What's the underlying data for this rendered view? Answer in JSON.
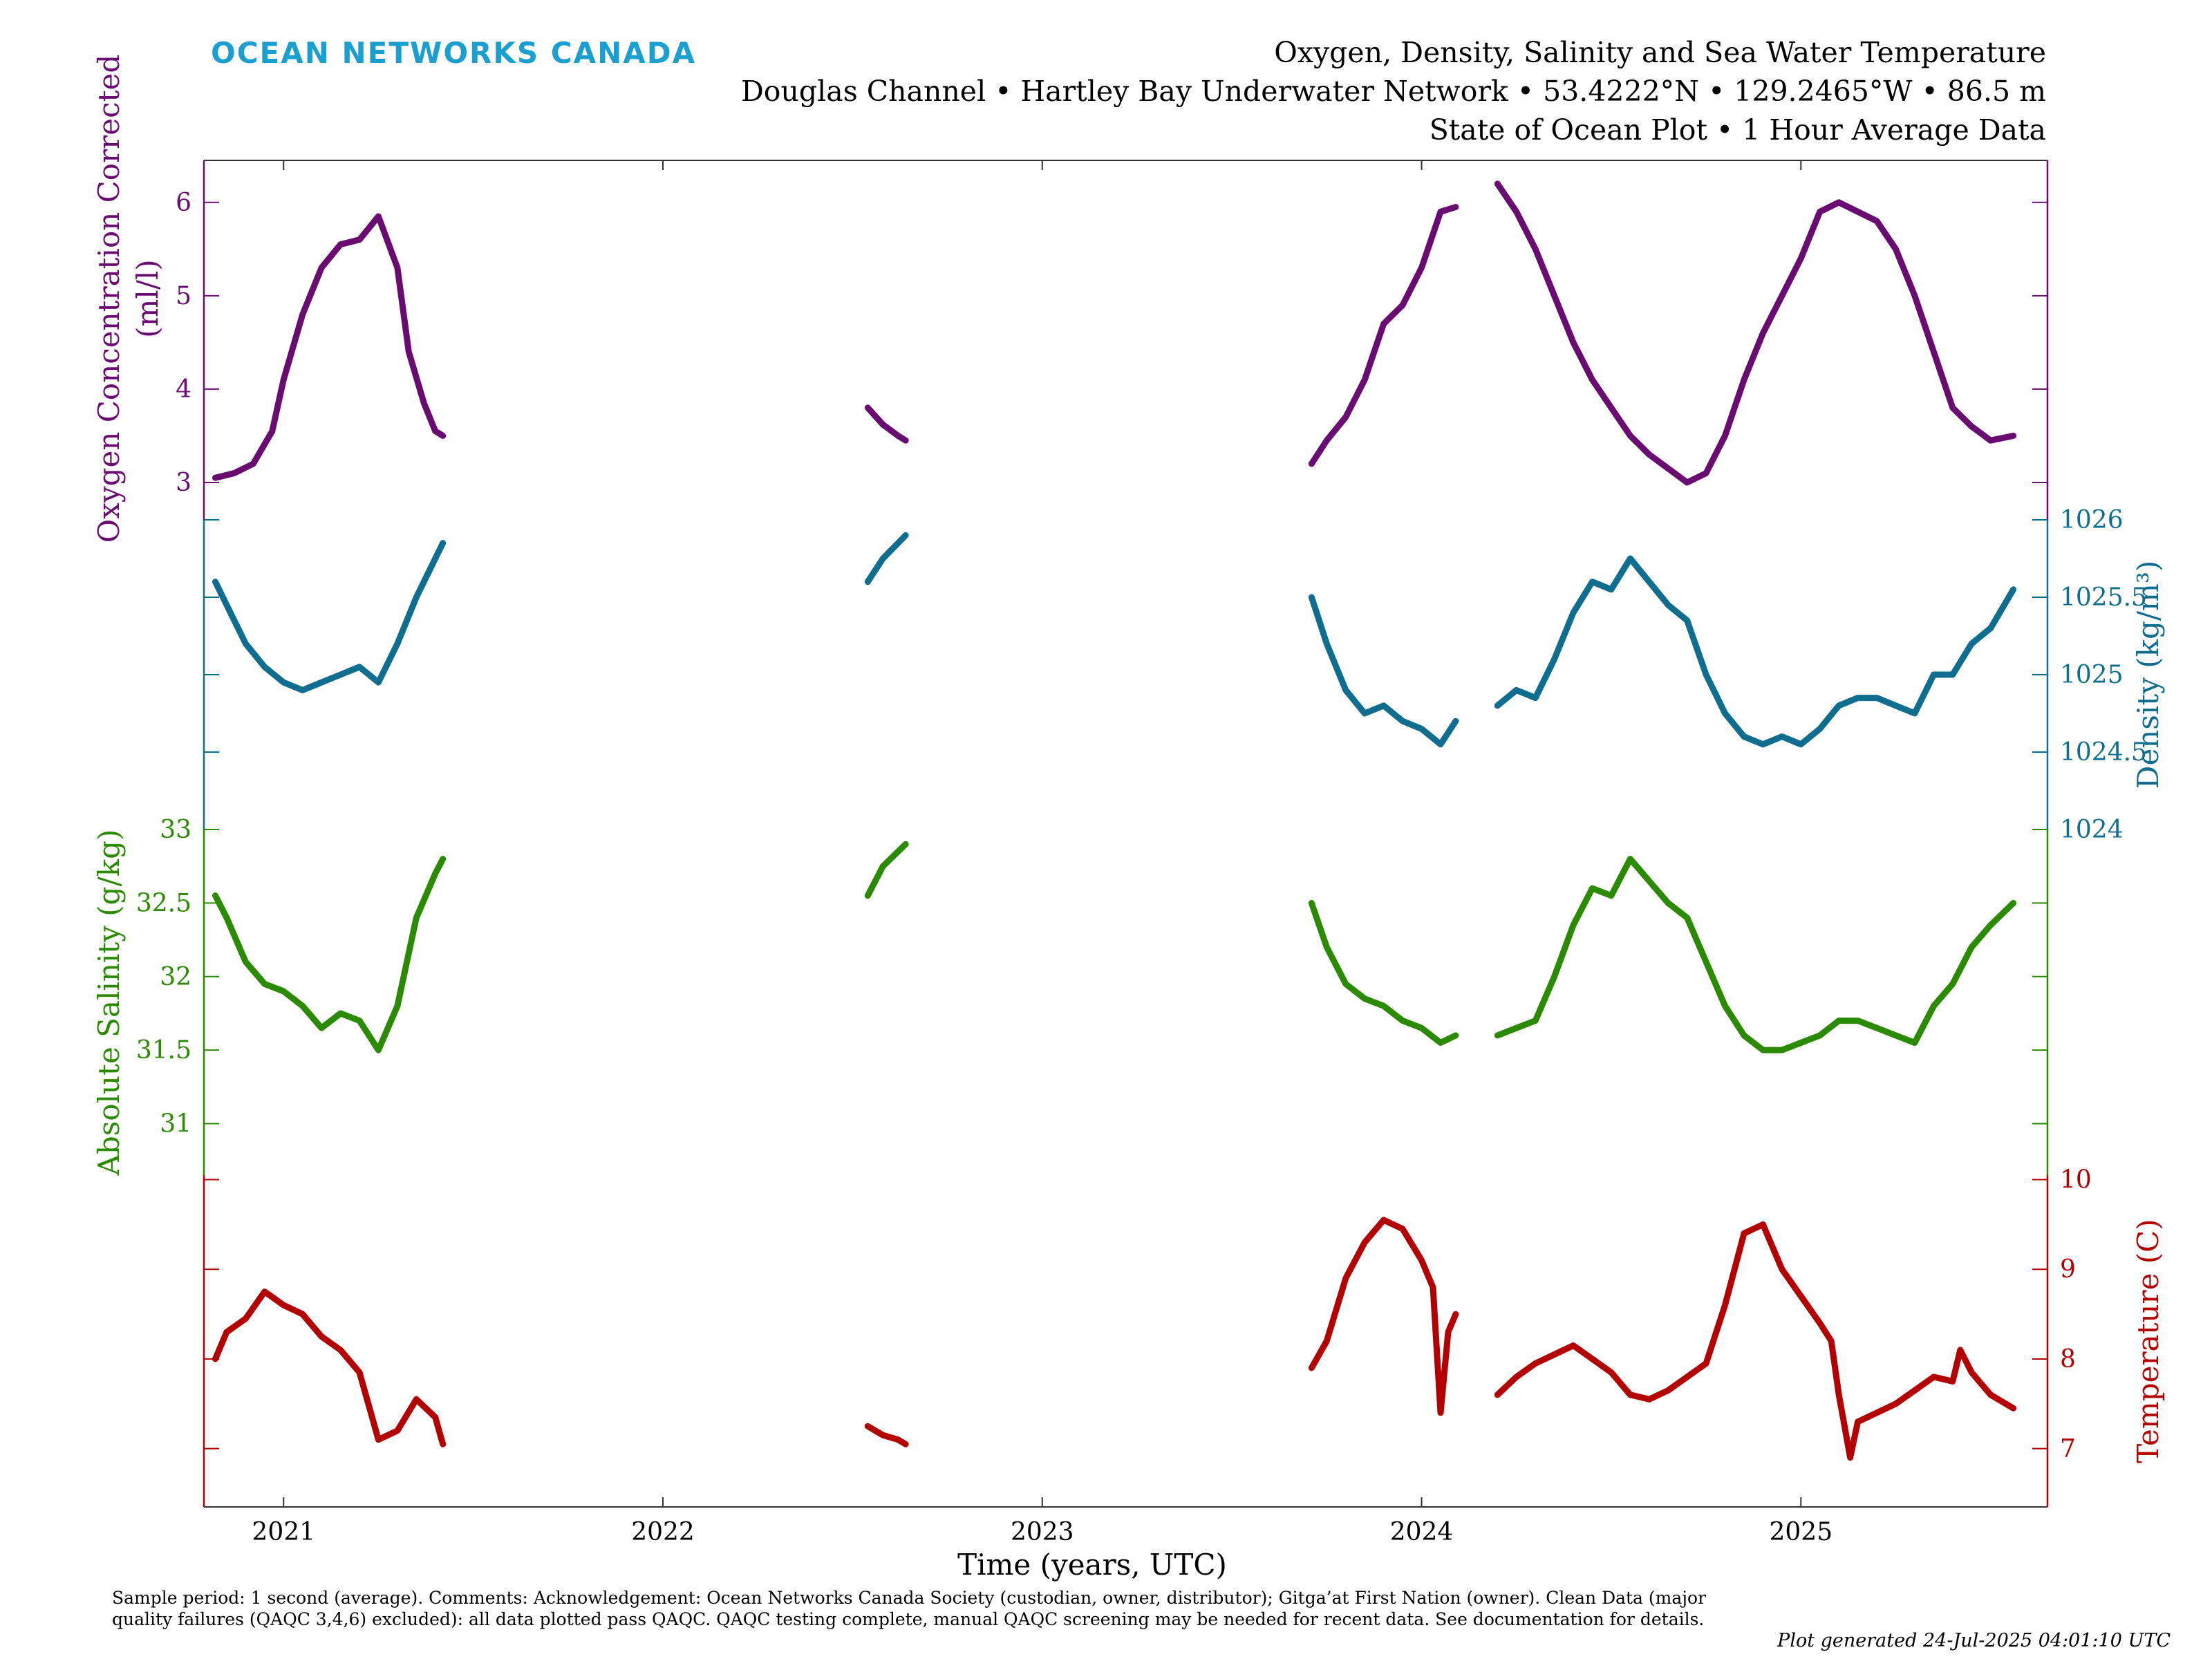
{
  "header": {
    "logo_text": "OCEAN NETWORKS CANADA",
    "title": "Oxygen, Density, Salinity and Sea Water Temperature",
    "subtitle": "Douglas Channel • Hartley Bay Underwater Network • 53.4222°N • 129.2465°W • 86.5 m",
    "subtitle2": "State of Ocean Plot • 1 Hour Average Data"
  },
  "footer": {
    "comment": "Sample period: 1 second (average). Comments: Acknowledgement: Ocean Networks Canada Society (custodian, owner, distributor); Gitga’at First Nation (owner). Clean Data (major quality failures (QAQC 3,4,6) excluded): all data plotted pass QAQC. QAQC testing complete, manual QAQC screening may be needed for recent data. See documentation for details.",
    "generated": "Plot generated 24-Jul-2025 04:01:10 UTC"
  },
  "chart_data": {
    "type": "line",
    "xlabel": "Time (years, UTC)",
    "x_range": [
      2020.79,
      2025.65
    ],
    "x_ticks": [
      2021,
      2022,
      2023,
      2024,
      2025
    ],
    "x_tick_labels": [
      "2021",
      "2022",
      "2023",
      "2024",
      "2025"
    ],
    "colors": {
      "oxygen": "#6a0b72",
      "density": "#0f6d8f",
      "salinity": "#2a8a00",
      "temperature": "#b30000"
    },
    "series": [
      {
        "key": "oxygen",
        "ylabel_lines": [
          "Oxygen Concentration Corrected",
          "(ml/l)"
        ],
        "axis_side": "left",
        "ylim": [
          2.6,
          6.45
        ],
        "ticks": [
          3,
          4,
          5,
          6
        ],
        "tick_labels": [
          "3",
          "4",
          "5",
          "6"
        ],
        "segments": [
          [
            [
              2020.82,
              3.05
            ],
            [
              2020.87,
              3.1
            ],
            [
              2020.92,
              3.2
            ],
            [
              2020.97,
              3.55
            ],
            [
              2021.0,
              4.1
            ],
            [
              2021.05,
              4.8
            ],
            [
              2021.1,
              5.3
            ],
            [
              2021.15,
              5.55
            ],
            [
              2021.2,
              5.6
            ],
            [
              2021.25,
              5.85
            ],
            [
              2021.3,
              5.3
            ],
            [
              2021.33,
              4.4
            ],
            [
              2021.37,
              3.85
            ],
            [
              2021.4,
              3.55
            ],
            [
              2021.42,
              3.5
            ]
          ],
          [
            [
              2022.54,
              3.8
            ],
            [
              2022.58,
              3.62
            ],
            [
              2022.62,
              3.5
            ],
            [
              2022.64,
              3.45
            ]
          ],
          [
            [
              2023.71,
              3.2
            ],
            [
              2023.75,
              3.45
            ],
            [
              2023.8,
              3.7
            ],
            [
              2023.85,
              4.1
            ],
            [
              2023.9,
              4.7
            ],
            [
              2023.95,
              4.9
            ],
            [
              2024.0,
              5.3
            ],
            [
              2024.05,
              5.9
            ],
            [
              2024.09,
              5.95
            ]
          ],
          [
            [
              2024.2,
              6.2
            ],
            [
              2024.25,
              5.9
            ],
            [
              2024.3,
              5.5
            ],
            [
              2024.35,
              5.0
            ],
            [
              2024.4,
              4.5
            ],
            [
              2024.45,
              4.1
            ],
            [
              2024.5,
              3.8
            ],
            [
              2024.55,
              3.5
            ],
            [
              2024.6,
              3.3
            ],
            [
              2024.65,
              3.15
            ],
            [
              2024.7,
              3.0
            ],
            [
              2024.75,
              3.1
            ],
            [
              2024.8,
              3.5
            ],
            [
              2024.85,
              4.1
            ],
            [
              2024.9,
              4.6
            ],
            [
              2024.95,
              5.0
            ],
            [
              2025.0,
              5.4
            ],
            [
              2025.05,
              5.9
            ],
            [
              2025.1,
              6.0
            ],
            [
              2025.15,
              5.9
            ],
            [
              2025.2,
              5.8
            ],
            [
              2025.25,
              5.5
            ],
            [
              2025.3,
              5.0
            ],
            [
              2025.35,
              4.4
            ],
            [
              2025.4,
              3.8
            ],
            [
              2025.45,
              3.6
            ],
            [
              2025.5,
              3.45
            ],
            [
              2025.56,
              3.5
            ]
          ]
        ]
      },
      {
        "key": "density",
        "ylabel": "Density (kg/m³)",
        "axis_side": "right",
        "ylim": [
          1024.0,
          1026.0
        ],
        "ticks": [
          1024,
          1024.5,
          1025,
          1025.5,
          1026
        ],
        "tick_labels": [
          "1024",
          "1024.5",
          "1025",
          "1025.5",
          "1026"
        ],
        "segments": [
          [
            [
              2020.82,
              1025.6
            ],
            [
              2020.85,
              1025.45
            ],
            [
              2020.9,
              1025.2
            ],
            [
              2020.95,
              1025.05
            ],
            [
              2021.0,
              1024.95
            ],
            [
              2021.05,
              1024.9
            ],
            [
              2021.1,
              1024.95
            ],
            [
              2021.15,
              1025.0
            ],
            [
              2021.2,
              1025.05
            ],
            [
              2021.25,
              1024.95
            ],
            [
              2021.3,
              1025.2
            ],
            [
              2021.35,
              1025.5
            ],
            [
              2021.4,
              1025.75
            ],
            [
              2021.42,
              1025.85
            ]
          ],
          [
            [
              2022.54,
              1025.6
            ],
            [
              2022.58,
              1025.75
            ],
            [
              2022.62,
              1025.85
            ],
            [
              2022.64,
              1025.9
            ]
          ],
          [
            [
              2023.71,
              1025.5
            ],
            [
              2023.75,
              1025.2
            ],
            [
              2023.8,
              1024.9
            ],
            [
              2023.85,
              1024.75
            ],
            [
              2023.9,
              1024.8
            ],
            [
              2023.95,
              1024.7
            ],
            [
              2024.0,
              1024.65
            ],
            [
              2024.05,
              1024.55
            ],
            [
              2024.09,
              1024.7
            ]
          ],
          [
            [
              2024.2,
              1024.8
            ],
            [
              2024.25,
              1024.9
            ],
            [
              2024.3,
              1024.85
            ],
            [
              2024.35,
              1025.1
            ],
            [
              2024.4,
              1025.4
            ],
            [
              2024.45,
              1025.6
            ],
            [
              2024.5,
              1025.55
            ],
            [
              2024.55,
              1025.75
            ],
            [
              2024.6,
              1025.6
            ],
            [
              2024.65,
              1025.45
            ],
            [
              2024.7,
              1025.35
            ],
            [
              2024.75,
              1025.0
            ],
            [
              2024.8,
              1024.75
            ],
            [
              2024.85,
              1024.6
            ],
            [
              2024.9,
              1024.55
            ],
            [
              2024.95,
              1024.6
            ],
            [
              2025.0,
              1024.55
            ],
            [
              2025.05,
              1024.65
            ],
            [
              2025.1,
              1024.8
            ],
            [
              2025.15,
              1024.85
            ],
            [
              2025.2,
              1024.85
            ],
            [
              2025.25,
              1024.8
            ],
            [
              2025.3,
              1024.75
            ],
            [
              2025.35,
              1025.0
            ],
            [
              2025.4,
              1025.0
            ],
            [
              2025.45,
              1025.2
            ],
            [
              2025.5,
              1025.3
            ],
            [
              2025.56,
              1025.55
            ]
          ]
        ]
      },
      {
        "key": "salinity",
        "ylabel": "Absolute Salinity (g/kg)",
        "axis_side": "left",
        "ylim": [
          30.65,
          33.0
        ],
        "ticks": [
          31,
          31.5,
          32,
          32.5,
          33
        ],
        "tick_labels": [
          "31",
          "31.5",
          "32",
          "32.5",
          "33"
        ],
        "segments": [
          [
            [
              2020.82,
              32.55
            ],
            [
              2020.85,
              32.4
            ],
            [
              2020.9,
              32.1
            ],
            [
              2020.95,
              31.95
            ],
            [
              2021.0,
              31.9
            ],
            [
              2021.05,
              31.8
            ],
            [
              2021.1,
              31.65
            ],
            [
              2021.15,
              31.75
            ],
            [
              2021.2,
              31.7
            ],
            [
              2021.25,
              31.5
            ],
            [
              2021.3,
              31.8
            ],
            [
              2021.35,
              32.4
            ],
            [
              2021.4,
              32.7
            ],
            [
              2021.42,
              32.8
            ]
          ],
          [
            [
              2022.54,
              32.55
            ],
            [
              2022.58,
              32.75
            ],
            [
              2022.62,
              32.85
            ],
            [
              2022.64,
              32.9
            ]
          ],
          [
            [
              2023.71,
              32.5
            ],
            [
              2023.75,
              32.2
            ],
            [
              2023.8,
              31.95
            ],
            [
              2023.85,
              31.85
            ],
            [
              2023.9,
              31.8
            ],
            [
              2023.95,
              31.7
            ],
            [
              2024.0,
              31.65
            ],
            [
              2024.05,
              31.55
            ],
            [
              2024.09,
              31.6
            ]
          ],
          [
            [
              2024.2,
              31.6
            ],
            [
              2024.25,
              31.65
            ],
            [
              2024.3,
              31.7
            ],
            [
              2024.35,
              32.0
            ],
            [
              2024.4,
              32.35
            ],
            [
              2024.45,
              32.6
            ],
            [
              2024.5,
              32.55
            ],
            [
              2024.55,
              32.8
            ],
            [
              2024.6,
              32.65
            ],
            [
              2024.65,
              32.5
            ],
            [
              2024.7,
              32.4
            ],
            [
              2024.75,
              32.1
            ],
            [
              2024.8,
              31.8
            ],
            [
              2024.85,
              31.6
            ],
            [
              2024.9,
              31.5
            ],
            [
              2024.95,
              31.5
            ],
            [
              2025.0,
              31.55
            ],
            [
              2025.05,
              31.6
            ],
            [
              2025.1,
              31.7
            ],
            [
              2025.15,
              31.7
            ],
            [
              2025.2,
              31.65
            ],
            [
              2025.25,
              31.6
            ],
            [
              2025.3,
              31.55
            ],
            [
              2025.35,
              31.8
            ],
            [
              2025.4,
              31.95
            ],
            [
              2025.45,
              32.2
            ],
            [
              2025.5,
              32.35
            ],
            [
              2025.56,
              32.5
            ]
          ]
        ]
      },
      {
        "key": "temperature",
        "ylabel": "Temperature (C)",
        "axis_side": "right",
        "ylim": [
          6.35,
          10.05
        ],
        "ticks": [
          7,
          8,
          9,
          10
        ],
        "tick_labels": [
          "7",
          "8",
          "9",
          "10"
        ],
        "segments": [
          [
            [
              2020.82,
              8.0
            ],
            [
              2020.85,
              8.3
            ],
            [
              2020.9,
              8.45
            ],
            [
              2020.95,
              8.75
            ],
            [
              2021.0,
              8.6
            ],
            [
              2021.05,
              8.5
            ],
            [
              2021.1,
              8.25
            ],
            [
              2021.15,
              8.1
            ],
            [
              2021.2,
              7.85
            ],
            [
              2021.23,
              7.4
            ],
            [
              2021.25,
              7.1
            ],
            [
              2021.3,
              7.2
            ],
            [
              2021.35,
              7.55
            ],
            [
              2021.4,
              7.35
            ],
            [
              2021.42,
              7.05
            ]
          ],
          [
            [
              2022.54,
              7.25
            ],
            [
              2022.58,
              7.15
            ],
            [
              2022.62,
              7.1
            ],
            [
              2022.64,
              7.05
            ]
          ],
          [
            [
              2023.71,
              7.9
            ],
            [
              2023.75,
              8.2
            ],
            [
              2023.8,
              8.9
            ],
            [
              2023.85,
              9.3
            ],
            [
              2023.9,
              9.55
            ],
            [
              2023.95,
              9.45
            ],
            [
              2024.0,
              9.1
            ],
            [
              2024.03,
              8.8
            ],
            [
              2024.05,
              7.4
            ],
            [
              2024.07,
              8.3
            ],
            [
              2024.09,
              8.5
            ]
          ],
          [
            [
              2024.2,
              7.6
            ],
            [
              2024.25,
              7.8
            ],
            [
              2024.3,
              7.95
            ],
            [
              2024.35,
              8.05
            ],
            [
              2024.4,
              8.15
            ],
            [
              2024.45,
              8.0
            ],
            [
              2024.5,
              7.85
            ],
            [
              2024.55,
              7.6
            ],
            [
              2024.6,
              7.55
            ],
            [
              2024.65,
              7.65
            ],
            [
              2024.7,
              7.8
            ],
            [
              2024.75,
              7.95
            ],
            [
              2024.8,
              8.6
            ],
            [
              2024.85,
              9.4
            ],
            [
              2024.9,
              9.5
            ],
            [
              2024.95,
              9.0
            ],
            [
              2025.0,
              8.7
            ],
            [
              2025.05,
              8.4
            ],
            [
              2025.08,
              8.2
            ],
            [
              2025.1,
              7.6
            ],
            [
              2025.13,
              6.9
            ],
            [
              2025.15,
              7.3
            ],
            [
              2025.2,
              7.4
            ],
            [
              2025.25,
              7.5
            ],
            [
              2025.3,
              7.65
            ],
            [
              2025.35,
              7.8
            ],
            [
              2025.4,
              7.75
            ],
            [
              2025.42,
              8.1
            ],
            [
              2025.45,
              7.85
            ],
            [
              2025.5,
              7.6
            ],
            [
              2025.56,
              7.45
            ]
          ]
        ]
      }
    ]
  }
}
